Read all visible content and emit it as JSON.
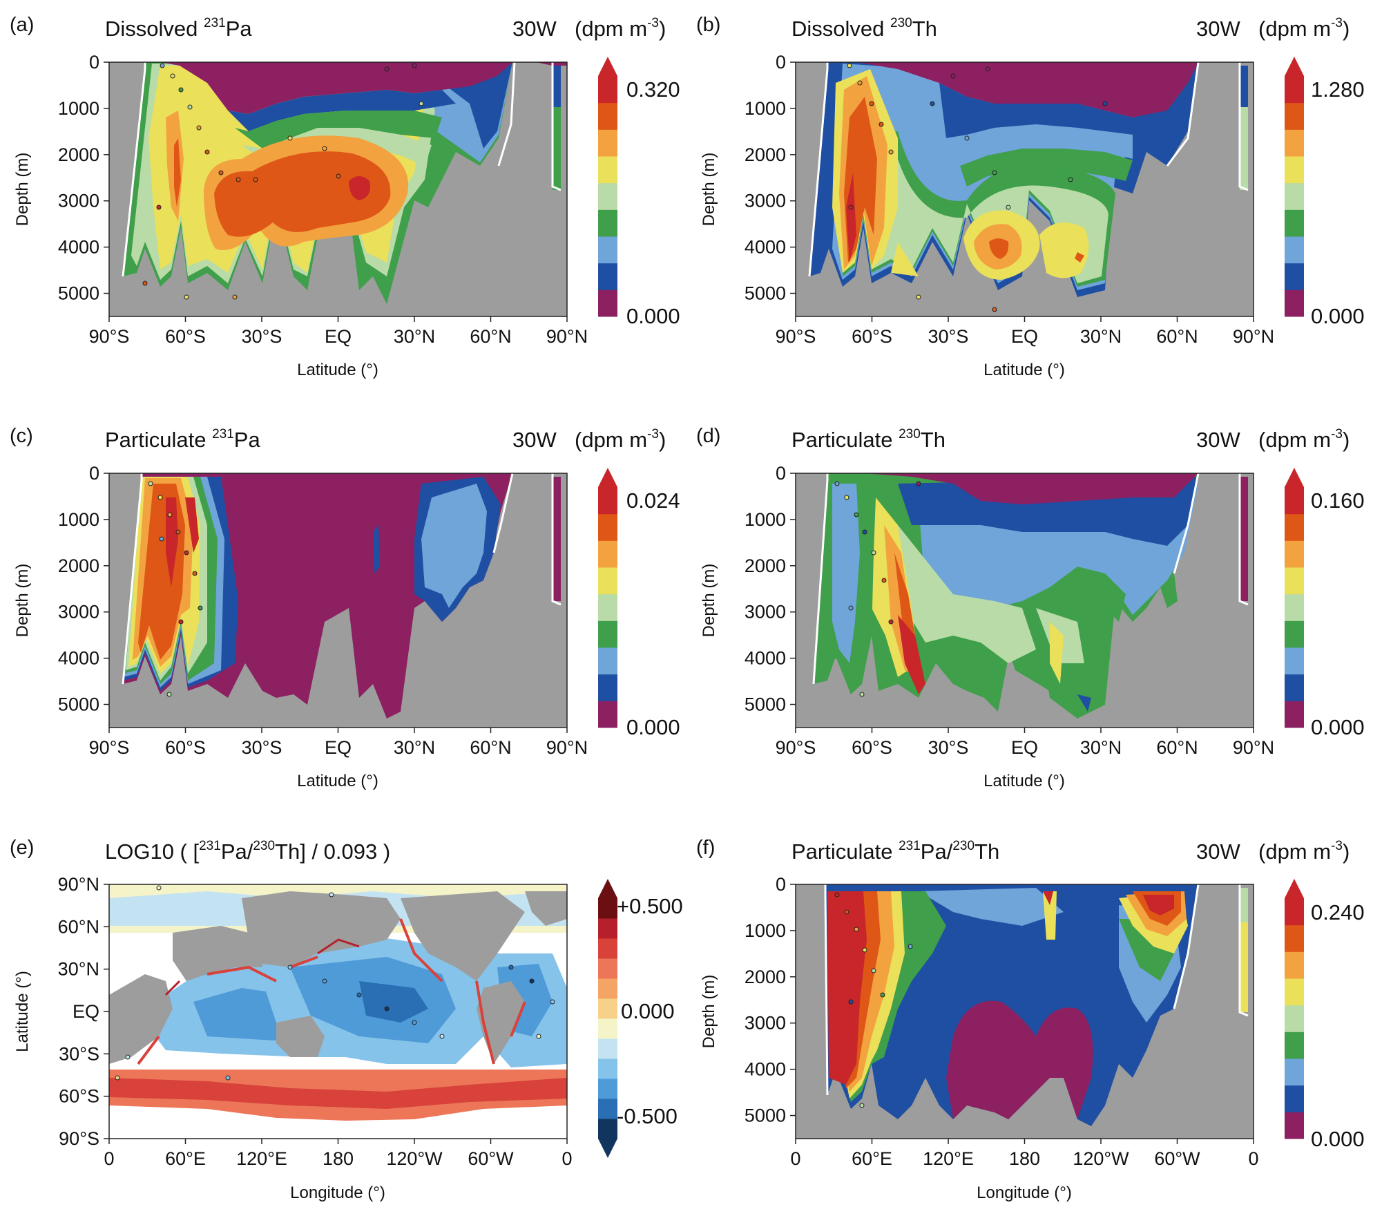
{
  "figure": "Pa and Th model-data comparison, six panels",
  "colormap": [
    "#8c2061",
    "#1f4fa3",
    "#6fa5d9",
    "#3f9f4a",
    "#b8dba8",
    "#eae05a",
    "#f2a33f",
    "#de5717",
    "#c8262a"
  ],
  "e_colormap": [
    "#12355f",
    "#2a6eb3",
    "#4f9bd8",
    "#86c3ea",
    "#c4e3f2",
    "#f5f3c8",
    "#f7d08a",
    "#f4a465",
    "#ec7657",
    "#d8423b",
    "#b5202b",
    "#6b0f12"
  ],
  "land_color": "#9d9d9d",
  "chart_data": [
    {
      "id": "a",
      "type": "heatmap",
      "label": "(a)",
      "title_main": "Dissolved ",
      "title_sup": "231",
      "title_rest": "Pa",
      "section": "30W",
      "unit_main": "(dpm m",
      "unit_sup": "-3",
      "unit_end": ")",
      "xlabel": "Latitude (°)",
      "ylabel": "Depth (m)",
      "xticks": [
        "90°S",
        "60°S",
        "30°S",
        "EQ",
        "30°N",
        "60°N",
        "90°N"
      ],
      "yticks": [
        "0",
        "1000",
        "2000",
        "3000",
        "4000",
        "5000"
      ],
      "xlim": [
        -90,
        90
      ],
      "ylim": [
        5500,
        0
      ],
      "colorbar": {
        "min": "0.000",
        "max": "0.320",
        "levels": 9,
        "extend": "max"
      }
    },
    {
      "id": "b",
      "type": "heatmap",
      "label": "(b)",
      "title_main": "Dissolved ",
      "title_sup": "230",
      "title_rest": "Th",
      "section": "30W",
      "unit_main": "(dpm m",
      "unit_sup": "-3",
      "unit_end": ")",
      "xlabel": "Latitude (°)",
      "ylabel": "Depth (m)",
      "xticks": [
        "90°S",
        "60°S",
        "30°S",
        "EQ",
        "30°N",
        "60°N",
        "90°N"
      ],
      "yticks": [
        "0",
        "1000",
        "2000",
        "3000",
        "4000",
        "5000"
      ],
      "xlim": [
        -90,
        90
      ],
      "ylim": [
        5500,
        0
      ],
      "colorbar": {
        "min": "0.000",
        "max": "1.280",
        "levels": 9,
        "extend": "max"
      }
    },
    {
      "id": "c",
      "type": "heatmap",
      "label": "(c)",
      "title_main": "Particulate ",
      "title_sup": "231",
      "title_rest": "Pa",
      "section": "30W",
      "unit_main": "(dpm m",
      "unit_sup": "-3",
      "unit_end": ")",
      "xlabel": "Latitude (°)",
      "ylabel": "Depth (m)",
      "xticks": [
        "90°S",
        "60°S",
        "30°S",
        "EQ",
        "30°N",
        "60°N",
        "90°N"
      ],
      "yticks": [
        "0",
        "1000",
        "2000",
        "3000",
        "4000",
        "5000"
      ],
      "xlim": [
        -90,
        90
      ],
      "ylim": [
        5500,
        0
      ],
      "colorbar": {
        "min": "0.000",
        "max": "0.024",
        "levels": 9,
        "extend": "max"
      }
    },
    {
      "id": "d",
      "type": "heatmap",
      "label": "(d)",
      "title_main": "Particulate ",
      "title_sup": "230",
      "title_rest": "Th",
      "section": "30W",
      "unit_main": "(dpm m",
      "unit_sup": "-3",
      "unit_end": ")",
      "xlabel": "Latitude (°)",
      "ylabel": "Depth (m)",
      "xticks": [
        "90°S",
        "60°S",
        "30°S",
        "EQ",
        "30°N",
        "60°N",
        "90°N"
      ],
      "yticks": [
        "0",
        "1000",
        "2000",
        "3000",
        "4000",
        "5000"
      ],
      "xlim": [
        -90,
        90
      ],
      "ylim": [
        5500,
        0
      ],
      "colorbar": {
        "min": "0.000",
        "max": "0.160",
        "levels": 9,
        "extend": "max"
      }
    },
    {
      "id": "e",
      "type": "heatmap",
      "label": "(e)",
      "title_main": "LOG10 ( [",
      "title_sup": "231",
      "title_rest": "Pa/",
      "title_sup2": "230",
      "title_rest2": "Th] / 0.093 )",
      "xlabel": "Longitude (°)",
      "ylabel": "Latitude (°)",
      "xticks": [
        "0",
        "60°E",
        "120°E",
        "180",
        "120°W",
        "60°W",
        "0"
      ],
      "yticks": [
        "90°N",
        "60°N",
        "30°N",
        "EQ",
        "30°S",
        "60°S",
        "90°S"
      ],
      "xlim": [
        0,
        360
      ],
      "ylim": [
        90,
        -90
      ],
      "colorbar": {
        "min": "-0.500",
        "mid": "0.000",
        "max": "+0.500",
        "levels": 12,
        "extend": "both"
      }
    },
    {
      "id": "f",
      "type": "heatmap",
      "label": "(f)",
      "title_main": "Particulate ",
      "title_sup": "231",
      "title_rest": "Pa/",
      "title_sup2": "230",
      "title_rest2": "Th",
      "section": "30W",
      "unit_main": "(dpm m",
      "unit_sup": "-3",
      "unit_end": ")",
      "xlabel": "Longitude (°)",
      "ylabel": "Depth (m)",
      "xticks": [
        "0",
        "60°E",
        "120°E",
        "180",
        "120°W",
        "60°W",
        "0"
      ],
      "yticks": [
        "0",
        "1000",
        "2000",
        "3000",
        "4000",
        "5000"
      ],
      "xlim": [
        0,
        360
      ],
      "ylim": [
        5500,
        0
      ],
      "colorbar": {
        "min": "0.000",
        "max": "0.240",
        "levels": 9,
        "extend": "max"
      }
    }
  ]
}
